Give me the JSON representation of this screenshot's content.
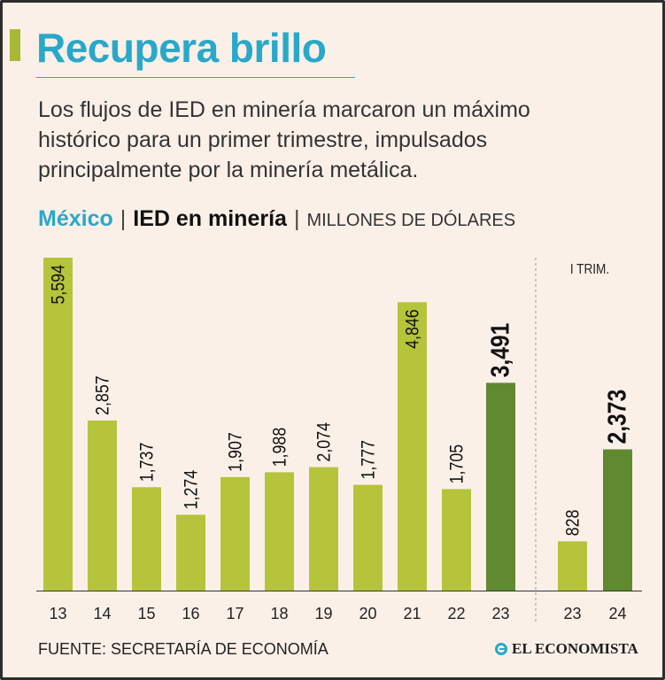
{
  "header": {
    "title": "Recupera brillo",
    "subtitle_lines": [
      "Los flujos de IED en minería marcaron un máximo",
      "histórico para un primer trimestre, impulsados",
      "principalmente por la minería metálica."
    ],
    "country": "México",
    "separator": "|",
    "metric": "IED en minería",
    "units": "MILLONES DE DÓLARES"
  },
  "footer": {
    "source": "FUENTE: SECRETARÍA DE ECONOMÍA",
    "brand": "EL ECONOMISTA"
  },
  "colors": {
    "bar_light": "#b5c43a",
    "bar_dark": "#5f8a2f",
    "title": "#29a8c9",
    "background": "#fbf0e8"
  },
  "chart_data": {
    "type": "bar",
    "title": "Recupera brillo",
    "ylabel": "MILLONES DE DÓLARES",
    "ylim": [
      0,
      5594
    ],
    "annual": {
      "categories": [
        "13",
        "14",
        "15",
        "16",
        "17",
        "18",
        "19",
        "20",
        "21",
        "22",
        "23"
      ],
      "values": [
        5594,
        2857,
        1737,
        1274,
        1907,
        1988,
        2074,
        1777,
        4846,
        1705,
        3491
      ],
      "labels": [
        "5,594",
        "2,857",
        "1,737",
        "1,274",
        "1,907",
        "1,988",
        "2,074",
        "1,777",
        "4,846",
        "1,705",
        "3,491"
      ],
      "highlight": [
        false,
        false,
        false,
        false,
        false,
        false,
        false,
        false,
        false,
        false,
        true
      ],
      "label_inside": [
        true,
        false,
        false,
        false,
        false,
        false,
        false,
        false,
        true,
        false,
        false
      ]
    },
    "first_quarter": {
      "section_label": "I TRIM.",
      "categories": [
        "23",
        "24"
      ],
      "values": [
        828,
        2373
      ],
      "labels": [
        "828",
        "2,373"
      ],
      "highlight": [
        false,
        true
      ],
      "label_inside": [
        false,
        false
      ]
    }
  }
}
